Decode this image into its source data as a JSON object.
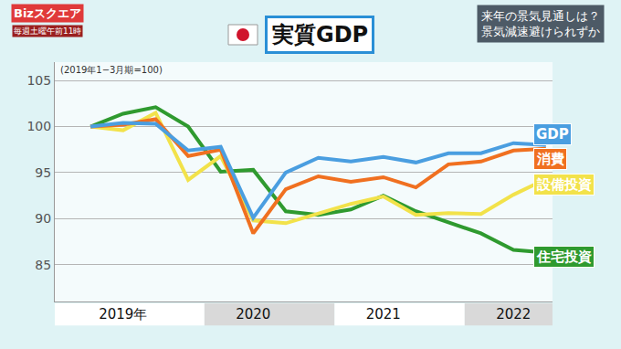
{
  "chart_data": {
    "type": "line",
    "title": "実質GDP",
    "subtitle": "来年の景気見通しは？\n景気減速避けられずか",
    "annotations": [
      "Bizスクエア",
      "毎週土曜午前11時",
      "(2019年1−3月期=100)"
    ],
    "categories": [
      null,
      "2019年",
      null,
      null,
      null,
      "2020",
      null,
      null,
      null,
      "2021",
      null,
      null,
      null,
      "2022",
      null
    ],
    "series": [
      {
        "name": "GDP",
        "color": "#4a9ee0",
        "values": [
          100,
          100.4,
          100.3,
          97.4,
          97.8,
          90.1,
          95.0,
          96.6,
          96.2,
          96.7,
          96.1,
          97.1,
          97.1,
          98.2,
          98.0
        ]
      },
      {
        "name": "消費",
        "color": "#f07020",
        "values": [
          100,
          100.2,
          100.8,
          96.8,
          97.5,
          88.4,
          93.2,
          94.6,
          94.0,
          94.5,
          93.4,
          95.9,
          96.2,
          97.4,
          97.6
        ]
      },
      {
        "name": "設備投資",
        "color": "#f2e24a",
        "values": [
          100,
          99.6,
          101.5,
          94.2,
          96.8,
          89.8,
          89.5,
          90.6,
          91.6,
          92.4,
          90.4,
          90.6,
          90.5,
          92.6,
          94.3
        ]
      },
      {
        "name": "住宅投資",
        "color": "#2f9a2f",
        "values": [
          100,
          101.4,
          102.1,
          100.0,
          95.1,
          95.3,
          90.8,
          90.4,
          91.0,
          92.5,
          90.8,
          89.6,
          88.4,
          86.6,
          86.3
        ]
      }
    ],
    "ylim": [
      81,
      107
    ],
    "yticks": [
      85,
      90,
      95,
      100,
      105
    ],
    "grid": true
  }
}
